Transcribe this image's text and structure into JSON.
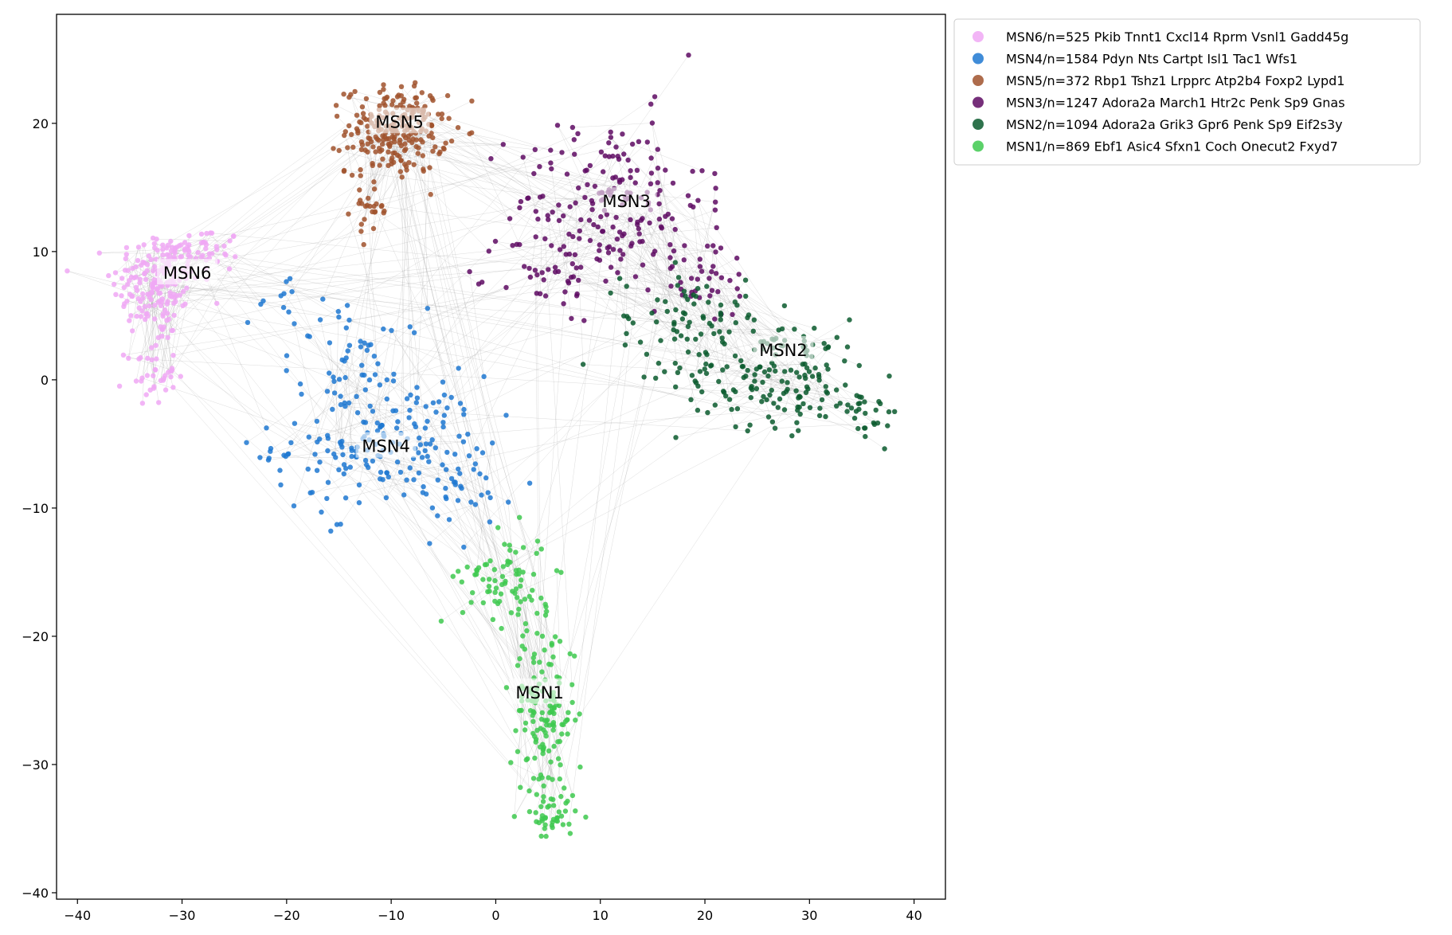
{
  "chart_data": {
    "type": "scatter",
    "title": "",
    "xlabel": "",
    "ylabel": "",
    "xlim": [
      -42,
      43
    ],
    "ylim": [
      -40.5,
      28.5
    ],
    "xticks": [
      -40,
      -30,
      -20,
      -10,
      0,
      10,
      20,
      30,
      40
    ],
    "yticks": [
      -40,
      -30,
      -20,
      -10,
      0,
      10,
      20
    ],
    "grid": false,
    "legend_position": "outside-top-right",
    "edge_color": "#9a9a9a",
    "series": [
      {
        "name": "MSN6/n=525 Pkib Tnnt1 Cxcl14 Rprm Vsnl1 Gadd45g",
        "color": "#f0a8f5",
        "label": "MSN6",
        "label_pos": [
          -29.5,
          8.3
        ],
        "blobs": [
          [
            -32.5,
            7.5,
            3.5,
            3.5,
            0.65
          ],
          [
            -28,
            10,
            3,
            1.6,
            0.2
          ],
          [
            -33,
            0.5,
            2,
            2,
            0.15
          ]
        ]
      },
      {
        "name": "MSN4/n=1584 Pdyn Nts Cartpt Isl1 Tac1 Wfs1",
        "color": "#1f78d1",
        "label": "MSN4",
        "label_pos": [
          -10.5,
          -5.2
        ],
        "blobs": [
          [
            -11,
            -5,
            8.5,
            4.5,
            0.7
          ],
          [
            -13,
            2,
            5,
            3,
            0.15
          ],
          [
            -2.5,
            -9,
            3.5,
            4,
            0.1
          ],
          [
            -20,
            6,
            3,
            2.5,
            0.05
          ]
        ]
      },
      {
        "name": "MSN5/n=372 Rbp1 Tshz1 Lrpprc Atp2b4 Foxp2 Lypd1",
        "color": "#a0522d",
        "label": "MSN5",
        "label_pos": [
          -9.2,
          20.1
        ],
        "blobs": [
          [
            -9.5,
            19.5,
            4,
            2.8,
            0.9
          ],
          [
            -12,
            13.5,
            1.5,
            2,
            0.1
          ]
        ]
      },
      {
        "name": "MSN3/n=1247 Adora2a March1 Htr2c Penk Sp9 Gnas",
        "color": "#5e0a63",
        "label": "MSN3",
        "label_pos": [
          12.5,
          13.9
        ],
        "blobs": [
          [
            11,
            14,
            7.5,
            5.5,
            0.7
          ],
          [
            5,
            8,
            4,
            3,
            0.15
          ],
          [
            20,
            8,
            4,
            3,
            0.15
          ]
        ]
      },
      {
        "name": "MSN2/n=1094 Adora2a Grik3 Gpr6 Penk Sp9 Eif2s3y",
        "color": "#0a5a2e",
        "label": "MSN2",
        "label_pos": [
          27.5,
          2.3
        ],
        "blobs": [
          [
            27,
            0.5,
            8,
            3.5,
            0.65
          ],
          [
            18,
            5,
            5,
            3,
            0.25
          ],
          [
            36,
            -2.5,
            2.5,
            1.8,
            0.1
          ]
        ]
      },
      {
        "name": "MSN1/n=869 Ebf1 Asic4 Sfxn1 Coch Onecut2 Fxyd7",
        "color": "#3ec94f",
        "label": "MSN1",
        "label_pos": [
          4.2,
          -24.4
        ],
        "blobs": [
          [
            4.5,
            -26,
            2.6,
            5.5,
            0.55
          ],
          [
            1,
            -15.5,
            3.5,
            3,
            0.3
          ],
          [
            5.5,
            -34,
            1.8,
            2,
            0.15
          ]
        ]
      }
    ]
  }
}
